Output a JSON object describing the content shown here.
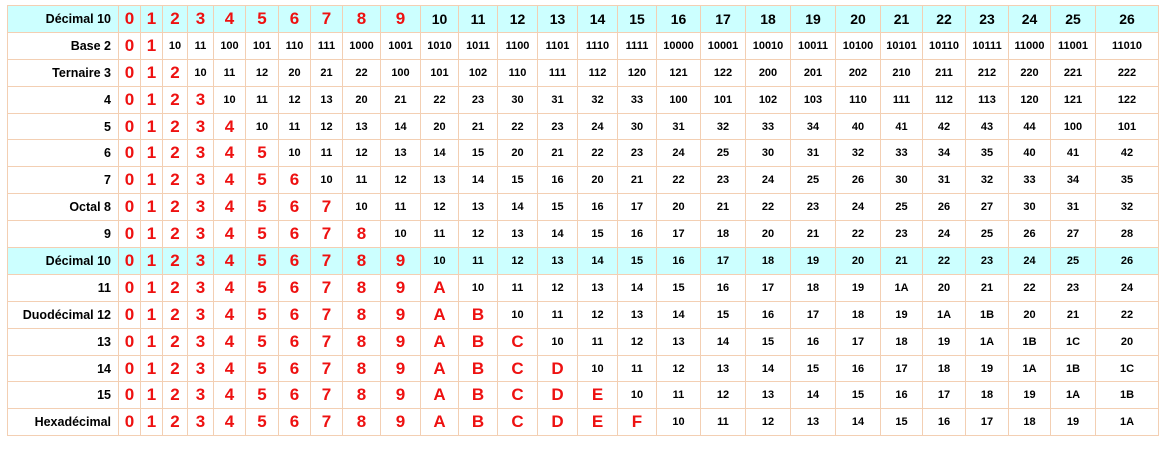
{
  "colors": {
    "highlight_row": "#ccffff",
    "single_digit": "#ee1111",
    "border": "#f3cfb3"
  },
  "rows": [
    {
      "label": "Décimal 10",
      "highlight": true,
      "cells": [
        "0",
        "1",
        "2",
        "3",
        "4",
        "5",
        "6",
        "7",
        "8",
        "9",
        "10",
        "11",
        "12",
        "13",
        "14",
        "15",
        "16",
        "17",
        "18",
        "19",
        "20",
        "21",
        "22",
        "23",
        "24",
        "25",
        "26"
      ]
    },
    {
      "label": "Base 2",
      "cells": [
        "0",
        "1",
        "10",
        "11",
        "100",
        "101",
        "110",
        "111",
        "1000",
        "1001",
        "1010",
        "1011",
        "1100",
        "1101",
        "1110",
        "1111",
        "10000",
        "10001",
        "10010",
        "10011",
        "10100",
        "10101",
        "10110",
        "10111",
        "11000",
        "11001",
        "11010"
      ]
    },
    {
      "label": "Ternaire 3",
      "cells": [
        "0",
        "1",
        "2",
        "10",
        "11",
        "12",
        "20",
        "21",
        "22",
        "100",
        "101",
        "102",
        "110",
        "111",
        "112",
        "120",
        "121",
        "122",
        "200",
        "201",
        "202",
        "210",
        "211",
        "212",
        "220",
        "221",
        "222"
      ]
    },
    {
      "label": "4",
      "cells": [
        "0",
        "1",
        "2",
        "3",
        "10",
        "11",
        "12",
        "13",
        "20",
        "21",
        "22",
        "23",
        "30",
        "31",
        "32",
        "33",
        "100",
        "101",
        "102",
        "103",
        "110",
        "111",
        "112",
        "113",
        "120",
        "121",
        "122"
      ]
    },
    {
      "label": "5",
      "cells": [
        "0",
        "1",
        "2",
        "3",
        "4",
        "10",
        "11",
        "12",
        "13",
        "14",
        "20",
        "21",
        "22",
        "23",
        "24",
        "30",
        "31",
        "32",
        "33",
        "34",
        "40",
        "41",
        "42",
        "43",
        "44",
        "100",
        "101"
      ]
    },
    {
      "label": "6",
      "cells": [
        "0",
        "1",
        "2",
        "3",
        "4",
        "5",
        "10",
        "11",
        "12",
        "13",
        "14",
        "15",
        "20",
        "21",
        "22",
        "23",
        "24",
        "25",
        "30",
        "31",
        "32",
        "33",
        "34",
        "35",
        "40",
        "41",
        "42"
      ]
    },
    {
      "label": "7",
      "cells": [
        "0",
        "1",
        "2",
        "3",
        "4",
        "5",
        "6",
        "10",
        "11",
        "12",
        "13",
        "14",
        "15",
        "16",
        "20",
        "21",
        "22",
        "23",
        "24",
        "25",
        "26",
        "30",
        "31",
        "32",
        "33",
        "34",
        "35"
      ]
    },
    {
      "label": "Octal 8",
      "cells": [
        "0",
        "1",
        "2",
        "3",
        "4",
        "5",
        "6",
        "7",
        "10",
        "11",
        "12",
        "13",
        "14",
        "15",
        "16",
        "17",
        "20",
        "21",
        "22",
        "23",
        "24",
        "25",
        "26",
        "27",
        "30",
        "31",
        "32"
      ]
    },
    {
      "label": "9",
      "cells": [
        "0",
        "1",
        "2",
        "3",
        "4",
        "5",
        "6",
        "7",
        "8",
        "10",
        "11",
        "12",
        "13",
        "14",
        "15",
        "16",
        "17",
        "18",
        "20",
        "21",
        "22",
        "23",
        "24",
        "25",
        "26",
        "27",
        "28"
      ]
    },
    {
      "label": "Décimal 10",
      "highlight": true,
      "cells": [
        "0",
        "1",
        "2",
        "3",
        "4",
        "5",
        "6",
        "7",
        "8",
        "9",
        "10",
        "11",
        "12",
        "13",
        "14",
        "15",
        "16",
        "17",
        "18",
        "19",
        "20",
        "21",
        "22",
        "23",
        "24",
        "25",
        "26"
      ]
    },
    {
      "label": "11",
      "cells": [
        "0",
        "1",
        "2",
        "3",
        "4",
        "5",
        "6",
        "7",
        "8",
        "9",
        "A",
        "10",
        "11",
        "12",
        "13",
        "14",
        "15",
        "16",
        "17",
        "18",
        "19",
        "1A",
        "20",
        "21",
        "22",
        "23",
        "24"
      ]
    },
    {
      "label": "Duodécimal 12",
      "cells": [
        "0",
        "1",
        "2",
        "3",
        "4",
        "5",
        "6",
        "7",
        "8",
        "9",
        "A",
        "B",
        "10",
        "11",
        "12",
        "13",
        "14",
        "15",
        "16",
        "17",
        "18",
        "19",
        "1A",
        "1B",
        "20",
        "21",
        "22"
      ]
    },
    {
      "label": "13",
      "cells": [
        "0",
        "1",
        "2",
        "3",
        "4",
        "5",
        "6",
        "7",
        "8",
        "9",
        "A",
        "B",
        "C",
        "10",
        "11",
        "12",
        "13",
        "14",
        "15",
        "16",
        "17",
        "18",
        "19",
        "1A",
        "1B",
        "1C",
        "20"
      ]
    },
    {
      "label": "14",
      "cells": [
        "0",
        "1",
        "2",
        "3",
        "4",
        "5",
        "6",
        "7",
        "8",
        "9",
        "A",
        "B",
        "C",
        "D",
        "10",
        "11",
        "12",
        "13",
        "14",
        "15",
        "16",
        "17",
        "18",
        "19",
        "1A",
        "1B",
        "1C"
      ]
    },
    {
      "label": "15",
      "cells": [
        "0",
        "1",
        "2",
        "3",
        "4",
        "5",
        "6",
        "7",
        "8",
        "9",
        "A",
        "B",
        "C",
        "D",
        "E",
        "10",
        "11",
        "12",
        "13",
        "14",
        "15",
        "16",
        "17",
        "18",
        "19",
        "1A",
        "1B"
      ]
    },
    {
      "label": "Hexadécimal",
      "cells": [
        "0",
        "1",
        "2",
        "3",
        "4",
        "5",
        "6",
        "7",
        "8",
        "9",
        "A",
        "B",
        "C",
        "D",
        "E",
        "F",
        "10",
        "11",
        "12",
        "13",
        "14",
        "15",
        "16",
        "17",
        "18",
        "19",
        "1A"
      ]
    }
  ]
}
